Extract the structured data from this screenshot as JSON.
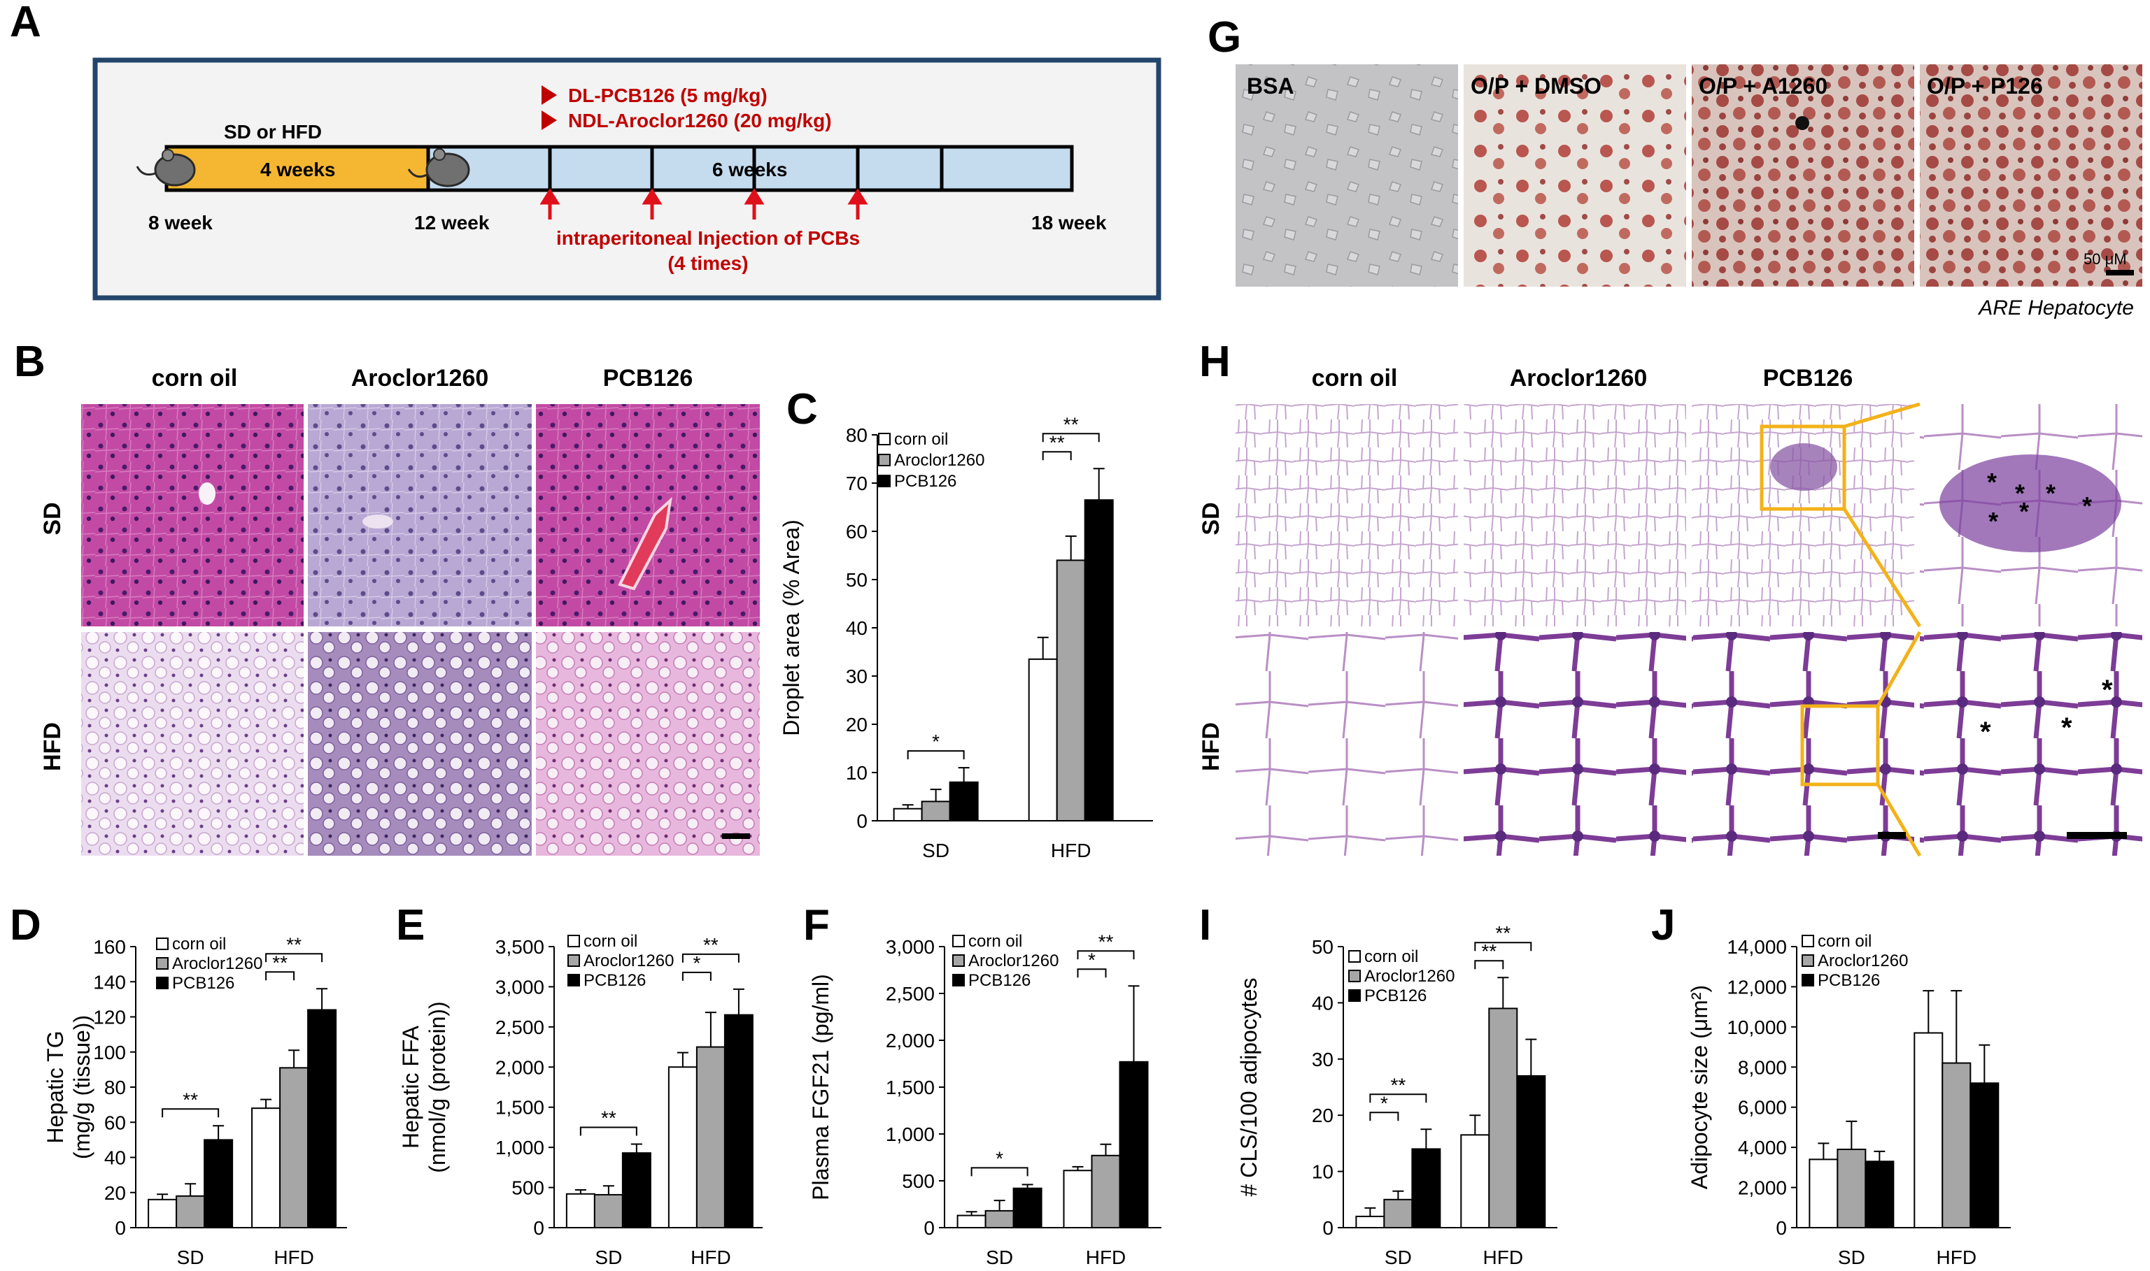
{
  "panels": {
    "A": {
      "letter": "A",
      "diet_label": "SD or HFD",
      "phase1_label": "4 weeks",
      "phase2_label": "6 weeks",
      "start_label": "8 week",
      "switch_label": "12 week",
      "end_label": "18 week",
      "treat1": "DL-PCB126 (5 mg/kg)",
      "treat2": "NDL-Aroclor1260 (20 mg/kg)",
      "injection_line1": "intraperitoneal Injection of PCBs",
      "injection_line2": "(4 times)",
      "colors": {
        "phase1": "#f5b731",
        "phase2": "#c5dbee",
        "frame": "#24456b",
        "arrow": "#c00000"
      }
    },
    "B": {
      "letter": "B",
      "cols": [
        "corn oil",
        "Aroclor1260",
        "PCB126"
      ],
      "rows": [
        "SD",
        "HFD"
      ]
    },
    "G": {
      "letter": "G",
      "labels": [
        "BSA",
        "O/P + DMSO",
        "O/P + A1260",
        "O/P + P126"
      ],
      "scale_label": "50 μM",
      "caption": "ARE Hepatocyte"
    },
    "H": {
      "letter": "H",
      "cols": [
        "corn oil",
        "Aroclor1260",
        "PCB126"
      ],
      "rows": [
        "SD",
        "HFD"
      ]
    }
  },
  "chart_data": [
    {
      "id": "C",
      "letter": "C",
      "type": "bar",
      "categories": [
        "SD",
        "HFD"
      ],
      "ylabel": "Droplet area (% Area)",
      "ylim": [
        0,
        80
      ],
      "yticks": [
        "0",
        "10",
        "20",
        "30",
        "40",
        "50",
        "60",
        "70",
        "80"
      ],
      "series": [
        {
          "name": "corn oil",
          "values": [
            2.5,
            33.5
          ],
          "errors": [
            0.8,
            4.5
          ],
          "color": "#ffffff"
        },
        {
          "name": "Aroclor1260",
          "values": [
            4,
            54
          ],
          "errors": [
            2.5,
            5
          ],
          "color": "#a6a6a6"
        },
        {
          "name": "PCB126",
          "values": [
            8,
            66.5
          ],
          "errors": [
            3,
            6.5
          ],
          "color": "#000000"
        }
      ],
      "significance": [
        {
          "group": 0,
          "from": 0,
          "to": 2,
          "label": "*"
        },
        {
          "group": 1,
          "from": 0,
          "to": 1,
          "label": "**"
        },
        {
          "group": 1,
          "from": 0,
          "to": 2,
          "label": "**"
        }
      ]
    },
    {
      "id": "D",
      "letter": "D",
      "type": "bar",
      "categories": [
        "SD",
        "HFD"
      ],
      "ylabel": "Hepatic TG",
      "ylabel2": "(mg/g (tissue))",
      "ylim": [
        0,
        160
      ],
      "yticks": [
        "0",
        "20",
        "40",
        "60",
        "80",
        "100",
        "120",
        "140",
        "160"
      ],
      "series": [
        {
          "name": "corn oil",
          "values": [
            16,
            68
          ],
          "errors": [
            3,
            5
          ],
          "color": "#ffffff"
        },
        {
          "name": "Aroclor1260",
          "values": [
            18,
            91
          ],
          "errors": [
            7,
            10
          ],
          "color": "#a6a6a6"
        },
        {
          "name": "PCB126",
          "values": [
            50,
            124
          ],
          "errors": [
            8,
            12
          ],
          "color": "#000000"
        }
      ],
      "significance": [
        {
          "group": 0,
          "from": 0,
          "to": 2,
          "label": "**"
        },
        {
          "group": 1,
          "from": 0,
          "to": 1,
          "label": "**"
        },
        {
          "group": 1,
          "from": 0,
          "to": 2,
          "label": "**"
        }
      ]
    },
    {
      "id": "E",
      "letter": "E",
      "type": "bar",
      "categories": [
        "SD",
        "HFD"
      ],
      "ylabel": "Hepatic FFA",
      "ylabel2": "(nmol/g (protein))",
      "ylim": [
        0,
        3500
      ],
      "yticks": [
        "0",
        "500",
        "1,000",
        "1,500",
        "2,000",
        "2,500",
        "3,000",
        "3,500"
      ],
      "series": [
        {
          "name": "corn oil",
          "values": [
            420,
            2000
          ],
          "errors": [
            50,
            180
          ],
          "color": "#ffffff"
        },
        {
          "name": "Aroclor1260",
          "values": [
            410,
            2250
          ],
          "errors": [
            110,
            430
          ],
          "color": "#a6a6a6"
        },
        {
          "name": "PCB126",
          "values": [
            930,
            2650
          ],
          "errors": [
            110,
            320
          ],
          "color": "#000000"
        }
      ],
      "significance": [
        {
          "group": 0,
          "from": 0,
          "to": 2,
          "label": "**"
        },
        {
          "group": 1,
          "from": 0,
          "to": 1,
          "label": "*"
        },
        {
          "group": 1,
          "from": 0,
          "to": 2,
          "label": "**"
        }
      ]
    },
    {
      "id": "F",
      "letter": "F",
      "type": "bar",
      "categories": [
        "SD",
        "HFD"
      ],
      "ylabel": "Plasma FGF21 (pg/ml)",
      "ylim": [
        0,
        3000
      ],
      "yticks": [
        "0",
        "500",
        "1,000",
        "1,500",
        "2,000",
        "2,500",
        "3,000"
      ],
      "series": [
        {
          "name": "corn oil",
          "values": [
            130,
            610
          ],
          "errors": [
            40,
            40
          ],
          "color": "#ffffff"
        },
        {
          "name": "Aroclor1260",
          "values": [
            180,
            770
          ],
          "errors": [
            110,
            120
          ],
          "color": "#a6a6a6"
        },
        {
          "name": "PCB126",
          "values": [
            420,
            1770
          ],
          "errors": [
            40,
            810
          ],
          "color": "#000000"
        }
      ],
      "significance": [
        {
          "group": 0,
          "from": 0,
          "to": 2,
          "label": "*"
        },
        {
          "group": 1,
          "from": 0,
          "to": 1,
          "label": "*"
        },
        {
          "group": 1,
          "from": 0,
          "to": 2,
          "label": "**"
        }
      ]
    },
    {
      "id": "I",
      "letter": "I",
      "type": "bar",
      "categories": [
        "SD",
        "HFD"
      ],
      "ylabel": "# CLS/100 adipocytes",
      "ylim": [
        0,
        50
      ],
      "yticks": [
        "0",
        "10",
        "20",
        "30",
        "40",
        "50"
      ],
      "series": [
        {
          "name": "corn oil",
          "values": [
            2,
            16.5
          ],
          "errors": [
            1.5,
            3.5
          ],
          "color": "#ffffff"
        },
        {
          "name": "Aroclor1260",
          "values": [
            5,
            39
          ],
          "errors": [
            1.5,
            5.5
          ],
          "color": "#a6a6a6"
        },
        {
          "name": "PCB126",
          "values": [
            14,
            27
          ],
          "errors": [
            3.5,
            6.5
          ],
          "color": "#000000"
        }
      ],
      "significance": [
        {
          "group": 0,
          "from": 0,
          "to": 1,
          "label": "*"
        },
        {
          "group": 0,
          "from": 0,
          "to": 2,
          "label": "**"
        },
        {
          "group": 1,
          "from": 0,
          "to": 1,
          "label": "**"
        },
        {
          "group": 1,
          "from": 0,
          "to": 2,
          "label": "**"
        }
      ]
    },
    {
      "id": "J",
      "letter": "J",
      "type": "bar",
      "categories": [
        "SD",
        "HFD"
      ],
      "ylabel": "Adipocyte size (μm²)",
      "ylim": [
        0,
        14000
      ],
      "yticks": [
        "0",
        "2,000",
        "4,000",
        "6,000",
        "8,000",
        "10,000",
        "12,000",
        "14,000"
      ],
      "series": [
        {
          "name": "corn oil",
          "values": [
            3400,
            9700
          ],
          "errors": [
            800,
            2100
          ],
          "color": "#ffffff"
        },
        {
          "name": "Aroclor1260",
          "values": [
            3900,
            8200
          ],
          "errors": [
            1400,
            3600
          ],
          "color": "#a6a6a6"
        },
        {
          "name": "PCB126",
          "values": [
            3300,
            7200
          ],
          "errors": [
            500,
            1900
          ],
          "color": "#000000"
        }
      ],
      "significance": []
    }
  ]
}
